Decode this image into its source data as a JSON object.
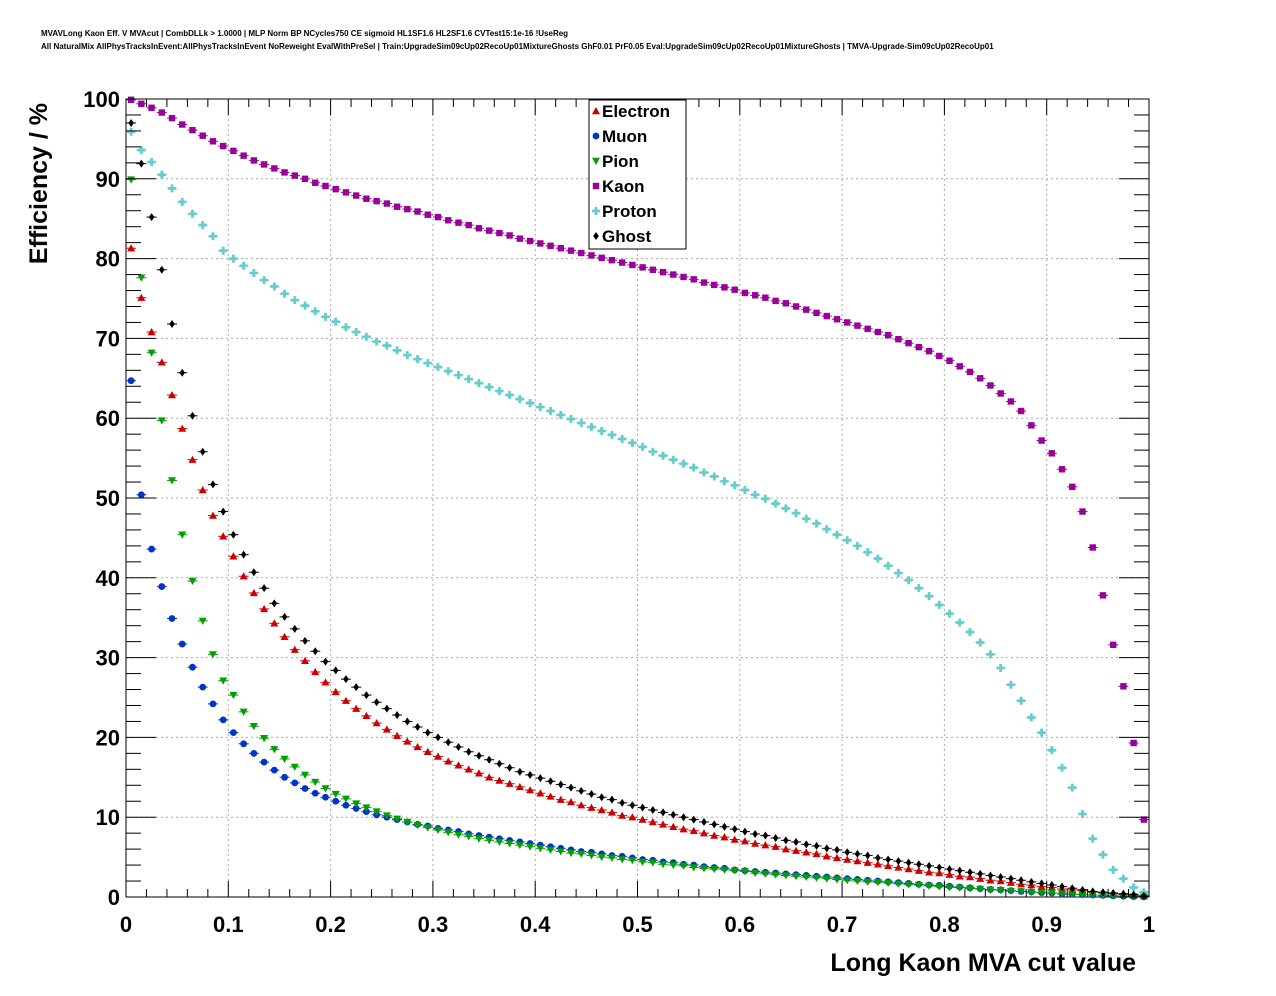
{
  "title_lines": [
    "MVAVLong Kaon Eff. V MVAcut | CombDLLk > 1.0000 | MLP Norm BP NCycles750 CE sigmoid HL1SF1.6 HL2SF1.6 CVTest15:1e-16 !UseReg",
    "All NaturalMix AllPhysTracksInEvent:AllPhysTracksInEvent NoReweight EvalWithPreSel | Train:UpgradeSim09cUp02RecoUp01MixtureGhosts GhF0.01 PrF0.05 Eval:UpgradeSim09cUp02RecoUp01MixtureGhosts | TMVA-Upgrade-Sim09cUp02RecoUp01"
  ],
  "chart_data": {
    "type": "scatter",
    "xlabel": "Long Kaon MVA cut value",
    "ylabel": "Efficiency / %",
    "xlim": [
      0,
      1
    ],
    "ylim": [
      0,
      100
    ],
    "x_ticks": [
      0,
      0.1,
      0.2,
      0.3,
      0.4,
      0.5,
      0.6,
      0.7,
      0.8,
      0.9,
      1
    ],
    "x_tick_labels": [
      "0",
      "0.1",
      "0.2",
      "0.3",
      "0.4",
      "0.5",
      "0.6",
      "0.7",
      "0.8",
      "0.9",
      "1"
    ],
    "y_ticks": [
      0,
      10,
      20,
      30,
      40,
      50,
      60,
      70,
      80,
      90,
      100
    ],
    "y_tick_labels": [
      "0",
      "10",
      "20",
      "30",
      "40",
      "50",
      "60",
      "70",
      "80",
      "90",
      "100"
    ],
    "grid": true,
    "legend_position": "top-center",
    "x": [
      0.005,
      0.015,
      0.025,
      0.035,
      0.045,
      0.055,
      0.065,
      0.075,
      0.085,
      0.095,
      0.105,
      0.115,
      0.125,
      0.135,
      0.145,
      0.155,
      0.165,
      0.175,
      0.185,
      0.195,
      0.205,
      0.215,
      0.225,
      0.235,
      0.245,
      0.255,
      0.265,
      0.275,
      0.285,
      0.295,
      0.305,
      0.315,
      0.325,
      0.335,
      0.345,
      0.355,
      0.365,
      0.375,
      0.385,
      0.395,
      0.405,
      0.415,
      0.425,
      0.435,
      0.445,
      0.455,
      0.465,
      0.475,
      0.485,
      0.495,
      0.505,
      0.515,
      0.525,
      0.535,
      0.545,
      0.555,
      0.565,
      0.575,
      0.585,
      0.595,
      0.605,
      0.615,
      0.625,
      0.635,
      0.645,
      0.655,
      0.665,
      0.675,
      0.685,
      0.695,
      0.705,
      0.715,
      0.725,
      0.735,
      0.745,
      0.755,
      0.765,
      0.775,
      0.785,
      0.795,
      0.805,
      0.815,
      0.825,
      0.835,
      0.845,
      0.855,
      0.865,
      0.875,
      0.885,
      0.895,
      0.905,
      0.915,
      0.925,
      0.935,
      0.945,
      0.955,
      0.965,
      0.975,
      0.985,
      0.995
    ],
    "series": [
      {
        "name": "Electron",
        "color": "#cc0000",
        "marker": "triangle-up",
        "values": [
          81.3,
          75.1,
          70.8,
          67.0,
          62.9,
          58.7,
          54.8,
          51.0,
          47.8,
          45.2,
          42.7,
          40.2,
          38.1,
          36.1,
          34.3,
          32.6,
          31.0,
          29.6,
          28.2,
          26.9,
          25.7,
          24.6,
          23.6,
          22.7,
          21.8,
          21.0,
          20.2,
          19.5,
          18.8,
          18.2,
          17.6,
          17.0,
          16.5,
          16.0,
          15.5,
          15.0,
          14.6,
          14.2,
          13.8,
          13.4,
          13.0,
          12.6,
          12.2,
          11.9,
          11.5,
          11.2,
          10.9,
          10.6,
          10.2,
          10.0,
          9.7,
          9.4,
          9.1,
          8.8,
          8.5,
          8.3,
          8.0,
          7.7,
          7.5,
          7.2,
          7.0,
          6.7,
          6.5,
          6.3,
          6.0,
          5.8,
          5.6,
          5.4,
          5.1,
          4.9,
          4.7,
          4.5,
          4.3,
          4.1,
          3.9,
          3.7,
          3.5,
          3.3,
          3.1,
          3.0,
          2.8,
          2.6,
          2.5,
          2.3,
          2.1,
          2.0,
          1.8,
          1.6,
          1.5,
          1.3,
          1.2,
          1.0,
          0.9,
          0.8,
          0.6,
          0.5,
          0.4,
          0.3,
          0.2,
          0.1
        ]
      },
      {
        "name": "Muon",
        "color": "#0033cc",
        "marker": "circle",
        "values": [
          64.7,
          50.4,
          43.6,
          38.9,
          34.9,
          31.7,
          28.8,
          26.3,
          24.2,
          22.2,
          20.6,
          19.2,
          18.0,
          16.9,
          15.9,
          15.0,
          14.3,
          13.6,
          13.0,
          12.5,
          12.0,
          11.5,
          11.1,
          10.7,
          10.3,
          10.0,
          9.7,
          9.4,
          9.1,
          8.9,
          8.6,
          8.4,
          8.2,
          7.9,
          7.7,
          7.5,
          7.3,
          7.1,
          6.9,
          6.7,
          6.5,
          6.3,
          6.1,
          5.9,
          5.7,
          5.6,
          5.4,
          5.2,
          5.1,
          4.9,
          4.7,
          4.6,
          4.4,
          4.3,
          4.1,
          4.0,
          3.8,
          3.7,
          3.6,
          3.4,
          3.3,
          3.2,
          3.1,
          3.0,
          2.9,
          2.8,
          2.7,
          2.6,
          2.5,
          2.4,
          2.3,
          2.2,
          2.1,
          2.0,
          1.9,
          1.8,
          1.7,
          1.6,
          1.5,
          1.45,
          1.35,
          1.25,
          1.15,
          1.05,
          0.95,
          0.9,
          0.8,
          0.7,
          0.65,
          0.55,
          0.5,
          0.4,
          0.35,
          0.3,
          0.25,
          0.2,
          0.15,
          0.1,
          0.05,
          0.02
        ]
      },
      {
        "name": "Pion",
        "color": "#00a000",
        "marker": "triangle-down",
        "values": [
          89.9,
          77.6,
          68.2,
          59.7,
          52.2,
          45.4,
          39.6,
          34.6,
          30.4,
          27.1,
          25.3,
          23.2,
          21.4,
          19.9,
          18.5,
          17.3,
          16.3,
          15.3,
          14.4,
          13.6,
          12.9,
          12.3,
          11.7,
          11.2,
          10.7,
          10.2,
          9.8,
          9.4,
          9.0,
          8.7,
          8.4,
          8.1,
          7.8,
          7.6,
          7.3,
          7.1,
          6.9,
          6.7,
          6.5,
          6.3,
          6.1,
          5.9,
          5.7,
          5.5,
          5.4,
          5.2,
          5.0,
          4.9,
          4.7,
          4.6,
          4.4,
          4.3,
          4.1,
          4.0,
          3.9,
          3.7,
          3.6,
          3.5,
          3.4,
          3.3,
          3.2,
          3.0,
          2.9,
          2.8,
          2.7,
          2.6,
          2.5,
          2.4,
          2.3,
          2.2,
          2.1,
          2.0,
          1.9,
          1.85,
          1.75,
          1.65,
          1.55,
          1.5,
          1.4,
          1.3,
          1.2,
          1.15,
          1.05,
          1.0,
          0.9,
          0.85,
          0.75,
          0.7,
          0.6,
          0.55,
          0.5,
          0.4,
          0.35,
          0.3,
          0.25,
          0.2,
          0.15,
          0.1,
          0.05,
          0.02
        ]
      },
      {
        "name": "Kaon",
        "color": "#990099",
        "marker": "square",
        "values": [
          99.9,
          99.4,
          98.9,
          98.3,
          97.6,
          96.8,
          96.1,
          95.4,
          94.7,
          94.1,
          93.5,
          92.9,
          92.3,
          91.8,
          91.3,
          90.8,
          90.4,
          90.0,
          89.5,
          89.1,
          88.7,
          88.3,
          87.9,
          87.5,
          87.2,
          86.9,
          86.5,
          86.2,
          85.9,
          85.5,
          85.2,
          84.8,
          84.5,
          84.2,
          83.8,
          83.5,
          83.2,
          82.9,
          82.5,
          82.2,
          81.9,
          81.6,
          81.3,
          81.0,
          80.7,
          80.4,
          80.1,
          79.8,
          79.5,
          79.2,
          78.9,
          78.6,
          78.3,
          78.0,
          77.7,
          77.4,
          77.0,
          76.7,
          76.4,
          76.1,
          75.7,
          75.4,
          75.1,
          74.7,
          74.4,
          74.0,
          73.6,
          73.2,
          72.8,
          72.4,
          72.0,
          71.6,
          71.2,
          70.8,
          70.4,
          69.9,
          69.4,
          68.9,
          68.4,
          67.8,
          67.2,
          66.5,
          65.8,
          65.0,
          64.1,
          63.1,
          62.1,
          60.9,
          59.1,
          57.2,
          55.6,
          53.6,
          51.4,
          48.3,
          43.8,
          37.8,
          31.6,
          26.4,
          19.3,
          9.7
        ]
      },
      {
        "name": "Proton",
        "color": "#66cccc",
        "marker": "cross",
        "values": [
          95.9,
          93.6,
          92.1,
          90.5,
          88.8,
          87.1,
          85.6,
          84.2,
          82.8,
          81.0,
          80.0,
          79.1,
          78.2,
          77.3,
          76.5,
          75.6,
          74.8,
          74.1,
          73.4,
          72.7,
          72.1,
          71.4,
          70.8,
          70.2,
          69.6,
          69.1,
          68.5,
          67.9,
          67.4,
          66.9,
          66.4,
          65.9,
          65.4,
          64.9,
          64.4,
          63.9,
          63.4,
          62.9,
          62.4,
          61.9,
          61.4,
          60.9,
          60.4,
          59.9,
          59.4,
          58.9,
          58.4,
          57.9,
          57.4,
          56.9,
          56.4,
          55.8,
          55.3,
          54.8,
          54.3,
          53.8,
          53.2,
          52.7,
          52.1,
          51.6,
          51.0,
          50.4,
          49.9,
          49.3,
          48.7,
          48.1,
          47.4,
          46.8,
          46.1,
          45.4,
          44.7,
          44.0,
          43.2,
          42.4,
          41.5,
          40.6,
          39.7,
          38.7,
          37.7,
          36.6,
          35.5,
          34.4,
          33.2,
          31.9,
          30.4,
          28.7,
          26.6,
          24.6,
          22.5,
          20.6,
          18.4,
          16.2,
          13.7,
          10.4,
          7.3,
          5.3,
          3.4,
          2.3,
          1.2,
          0.6
        ]
      },
      {
        "name": "Ghost",
        "color": "#000000",
        "marker": "diamond",
        "values": [
          97.0,
          91.9,
          85.2,
          78.6,
          71.8,
          65.7,
          60.3,
          55.8,
          51.7,
          48.3,
          45.4,
          42.9,
          40.7,
          38.7,
          36.8,
          35.1,
          33.6,
          32.1,
          30.8,
          29.5,
          28.4,
          27.3,
          26.3,
          25.3,
          24.4,
          23.6,
          22.8,
          22.0,
          21.3,
          20.6,
          20.0,
          19.4,
          18.8,
          18.2,
          17.7,
          17.2,
          16.7,
          16.2,
          15.7,
          15.3,
          14.9,
          14.5,
          14.1,
          13.7,
          13.3,
          12.9,
          12.5,
          12.2,
          11.8,
          11.5,
          11.2,
          10.9,
          10.6,
          10.3,
          10.0,
          9.7,
          9.4,
          9.1,
          8.8,
          8.5,
          8.2,
          7.9,
          7.7,
          7.4,
          7.1,
          6.9,
          6.6,
          6.4,
          6.1,
          5.9,
          5.6,
          5.4,
          5.2,
          4.9,
          4.7,
          4.5,
          4.3,
          4.1,
          3.9,
          3.7,
          3.5,
          3.3,
          3.1,
          2.9,
          2.7,
          2.5,
          2.3,
          2.1,
          1.9,
          1.7,
          1.5,
          1.3,
          1.1,
          0.9,
          0.7,
          0.6,
          0.5,
          0.4,
          0.3,
          0.15
        ]
      }
    ]
  }
}
